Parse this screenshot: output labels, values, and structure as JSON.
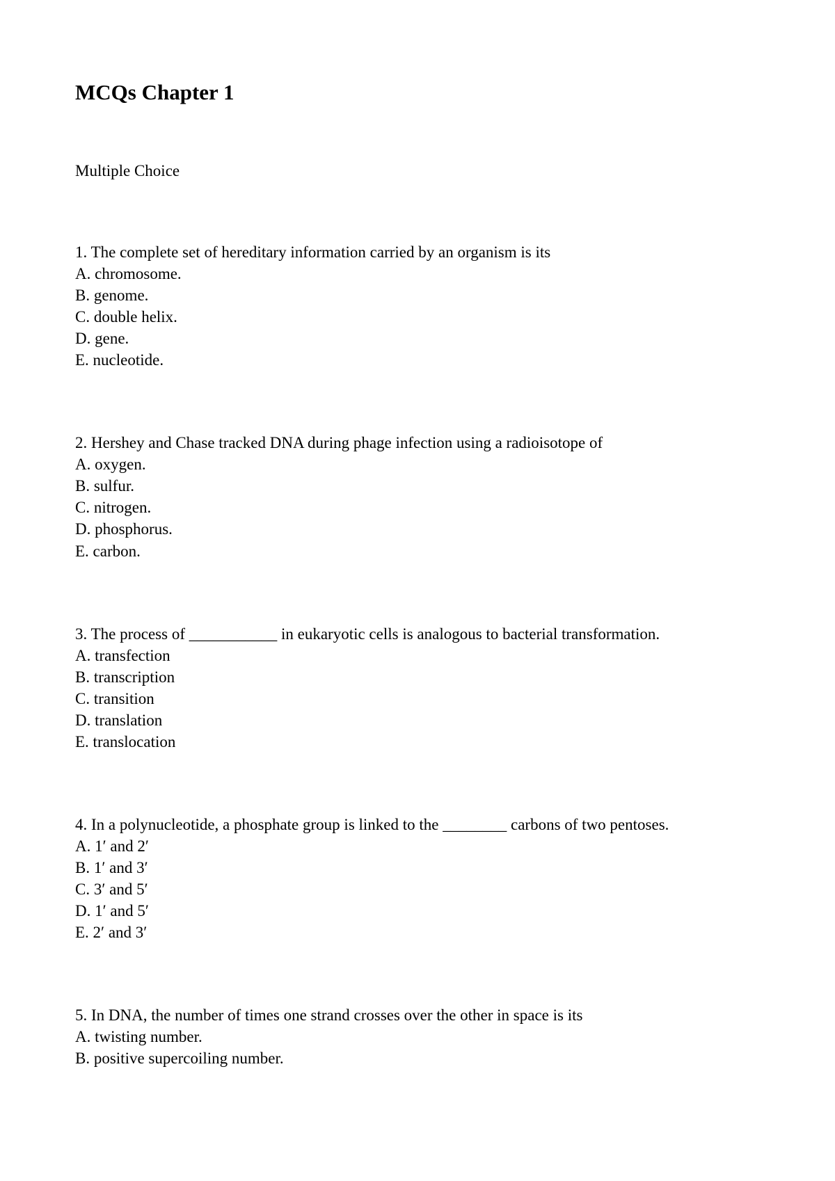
{
  "title": "MCQs Chapter 1",
  "subtitle": "Multiple Choice",
  "questions": {
    "q1": {
      "prompt": "1.  The complete set of hereditary information carried by an organism is its",
      "a": "A.  chromosome.",
      "b": "B.  genome.",
      "c": "C.  double helix.",
      "d": "D.  gene.",
      "e": "E.  nucleotide."
    },
    "q2": {
      "prompt": "2.  Hershey and Chase tracked DNA during phage infection using a radioisotope of",
      "a": "A.  oxygen.",
      "b": "B.  sulfur.",
      "c": "C.  nitrogen.",
      "d": "D.  phosphorus.",
      "e": "E.  carbon."
    },
    "q3": {
      "prompt": "3.  The process of ___________ in eukaryotic cells is analogous to bacterial transformation.",
      "a": "A.  transfection",
      "b": "B.  transcription",
      "c": "C.  transition",
      "d": "D.  translation",
      "e": "E.  translocation"
    },
    "q4": {
      "prompt": "4.  In a polynucleotide, a phosphate group is linked to the ________ carbons of two pentoses.",
      "a": "A.  1′ and 2′",
      "b": "B.  1′ and 3′",
      "c": "C.  3′ and 5′",
      "d": "D.  1′ and 5′",
      "e": "E.  2′ and 3′"
    },
    "q5": {
      "prompt": "5.  In DNA, the number of times one strand crosses over the other in space is its",
      "a": "A.  twisting number.",
      "b": "B.  positive supercoiling number."
    }
  }
}
